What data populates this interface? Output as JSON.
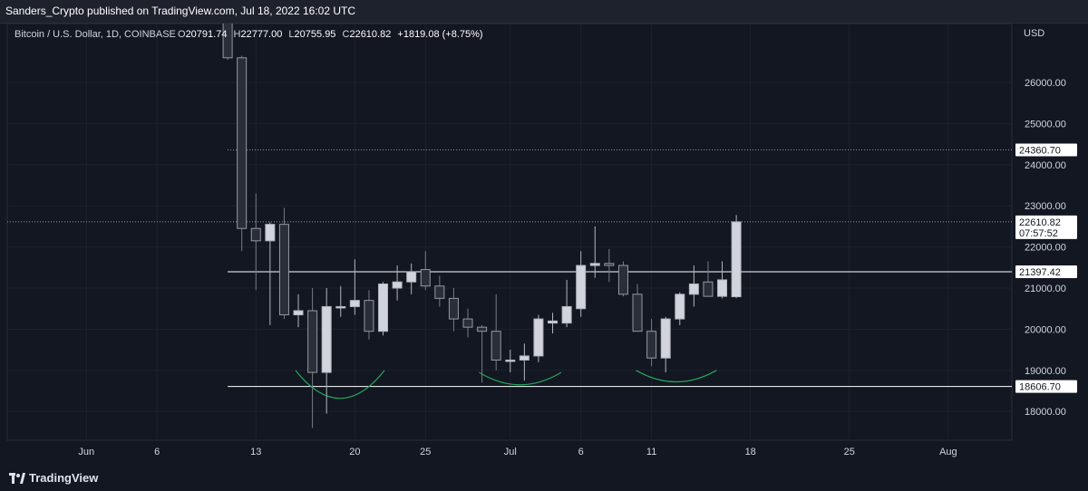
{
  "header": {
    "publisher_text": "Sanders_Crypto published on TradingView.com, Jul 18, 2022 16:02 UTC"
  },
  "legend": {
    "symbol": "Bitcoin / U.S. Dollar, 1D, COINBASE",
    "o_label": "O",
    "o_value": "20791.74",
    "h_label": "H",
    "h_value": "22777.00",
    "l_label": "L",
    "l_value": "20755.95",
    "c_label": "C",
    "c_value": "22610.82",
    "change": "+1819.08 (+8.75%)"
  },
  "footer": {
    "brand": "TradingView"
  },
  "colors": {
    "background": "#131722",
    "candle_up": "#d1d4dc",
    "candle_down": "#5d606b",
    "arc": "#26a65b",
    "line": "#ffffff"
  },
  "chart_data": {
    "type": "candlestick",
    "currency_label": "USD",
    "y_ticks": [
      18000,
      19000,
      20000,
      21000,
      22000,
      23000,
      24000,
      25000,
      26000
    ],
    "y_tick_labels": [
      "18000.00",
      "19000.00",
      "20000.00",
      "21000.00",
      "22000.00",
      "23000.00",
      "24000.00",
      "25000.00",
      "26000.00"
    ],
    "y_range": [
      17300,
      27300
    ],
    "x_ticks": [
      {
        "day": -15,
        "label": "Jun"
      },
      {
        "day": -10,
        "label": "6"
      },
      {
        "day": -3,
        "label": "13"
      },
      {
        "day": 4,
        "label": "20"
      },
      {
        "day": 9,
        "label": "25"
      },
      {
        "day": 15,
        "label": "Jul"
      },
      {
        "day": 20,
        "label": "6"
      },
      {
        "day": 25,
        "label": "11"
      },
      {
        "day": 32,
        "label": "18"
      },
      {
        "day": 39,
        "label": "25"
      },
      {
        "day": 46,
        "label": "Aug"
      }
    ],
    "x_day_range": [
      -20.6,
      50.5
    ],
    "candles": [
      {
        "d": -5,
        "o": 27500,
        "h": 27800,
        "l": 26550,
        "c": 26600
      },
      {
        "d": -4,
        "o": 26600,
        "h": 26650,
        "l": 21900,
        "c": 22450
      },
      {
        "d": -3,
        "o": 22450,
        "h": 23300,
        "l": 20950,
        "c": 22150
      },
      {
        "d": -2,
        "o": 22150,
        "h": 22600,
        "l": 20100,
        "c": 22550
      },
      {
        "d": -1,
        "o": 22550,
        "h": 22950,
        "l": 20250,
        "c": 20350
      },
      {
        "d": 0,
        "o": 20350,
        "h": 20850,
        "l": 20050,
        "c": 20450
      },
      {
        "d": 1,
        "o": 20450,
        "h": 21000,
        "l": 17600,
        "c": 18950
      },
      {
        "d": 2,
        "o": 18950,
        "h": 21000,
        "l": 17950,
        "c": 20550
      },
      {
        "d": 3,
        "o": 20550,
        "h": 21050,
        "l": 20300,
        "c": 20550
      },
      {
        "d": 4,
        "o": 20550,
        "h": 21700,
        "l": 20350,
        "c": 20700
      },
      {
        "d": 5,
        "o": 20700,
        "h": 20950,
        "l": 19750,
        "c": 19950
      },
      {
        "d": 6,
        "o": 19950,
        "h": 21150,
        "l": 19850,
        "c": 21100
      },
      {
        "d": 7,
        "o": 21000,
        "h": 21550,
        "l": 20700,
        "c": 21150
      },
      {
        "d": 8,
        "o": 21150,
        "h": 21600,
        "l": 20850,
        "c": 21400
      },
      {
        "d": 9,
        "o": 21450,
        "h": 21900,
        "l": 20950,
        "c": 21050
      },
      {
        "d": 10,
        "o": 21050,
        "h": 21300,
        "l": 20550,
        "c": 20750
      },
      {
        "d": 11,
        "o": 20750,
        "h": 21000,
        "l": 19950,
        "c": 20250
      },
      {
        "d": 12,
        "o": 20250,
        "h": 20500,
        "l": 19800,
        "c": 20050
      },
      {
        "d": 13,
        "o": 20050,
        "h": 20100,
        "l": 18700,
        "c": 19950
      },
      {
        "d": 14,
        "o": 19950,
        "h": 20850,
        "l": 19000,
        "c": 19250
      },
      {
        "d": 15,
        "o": 19250,
        "h": 19500,
        "l": 18950,
        "c": 19250
      },
      {
        "d": 16,
        "o": 19250,
        "h": 19650,
        "l": 18750,
        "c": 19350
      },
      {
        "d": 17,
        "o": 19350,
        "h": 20350,
        "l": 19200,
        "c": 20250
      },
      {
        "d": 18,
        "o": 20150,
        "h": 20400,
        "l": 19900,
        "c": 20200
      },
      {
        "d": 19,
        "o": 20150,
        "h": 21200,
        "l": 20050,
        "c": 20550
      },
      {
        "d": 20,
        "o": 20500,
        "h": 21900,
        "l": 20300,
        "c": 21550
      },
      {
        "d": 21,
        "o": 21550,
        "h": 22500,
        "l": 21250,
        "c": 21600
      },
      {
        "d": 22,
        "o": 21600,
        "h": 21950,
        "l": 21150,
        "c": 21550
      },
      {
        "d": 23,
        "o": 21550,
        "h": 21650,
        "l": 20800,
        "c": 20850
      },
      {
        "d": 24,
        "o": 20850,
        "h": 21100,
        "l": 19950,
        "c": 19950
      },
      {
        "d": 25,
        "o": 19950,
        "h": 20250,
        "l": 19100,
        "c": 19300
      },
      {
        "d": 26,
        "o": 19300,
        "h": 20300,
        "l": 18950,
        "c": 20250
      },
      {
        "d": 27,
        "o": 20250,
        "h": 20900,
        "l": 20100,
        "c": 20850
      },
      {
        "d": 28,
        "o": 20850,
        "h": 21550,
        "l": 20550,
        "c": 21100
      },
      {
        "d": 29,
        "o": 21150,
        "h": 21650,
        "l": 20850,
        "c": 20800
      },
      {
        "d": 30,
        "o": 20800,
        "h": 21650,
        "l": 20750,
        "c": 21200
      },
      {
        "d": 31,
        "o": 20790,
        "h": 22777,
        "l": 20755,
        "c": 22610
      }
    ],
    "horizontal_lines": [
      {
        "value": 24360.7,
        "label": "24360.70",
        "style": "dotted",
        "from_day": -5
      },
      {
        "value": 22610.82,
        "label": "22610.82",
        "sublabel": "07:57:52",
        "style": "dotted",
        "from_day": -20.6
      },
      {
        "value": 21397.42,
        "label": "21397.42",
        "style": "solid",
        "from_day": -5
      },
      {
        "value": 18606.7,
        "label": "18606.70",
        "style": "solid",
        "from_day": -5
      }
    ],
    "arcs": [
      {
        "from_day": -0.2,
        "to_day": 6.1,
        "top": 19000,
        "bottom": 18320
      },
      {
        "from_day": 12.8,
        "to_day": 18.6,
        "top": 18950,
        "bottom": 18650
      },
      {
        "from_day": 23.9,
        "to_day": 29.6,
        "top": 19000,
        "bottom": 18720
      }
    ]
  }
}
